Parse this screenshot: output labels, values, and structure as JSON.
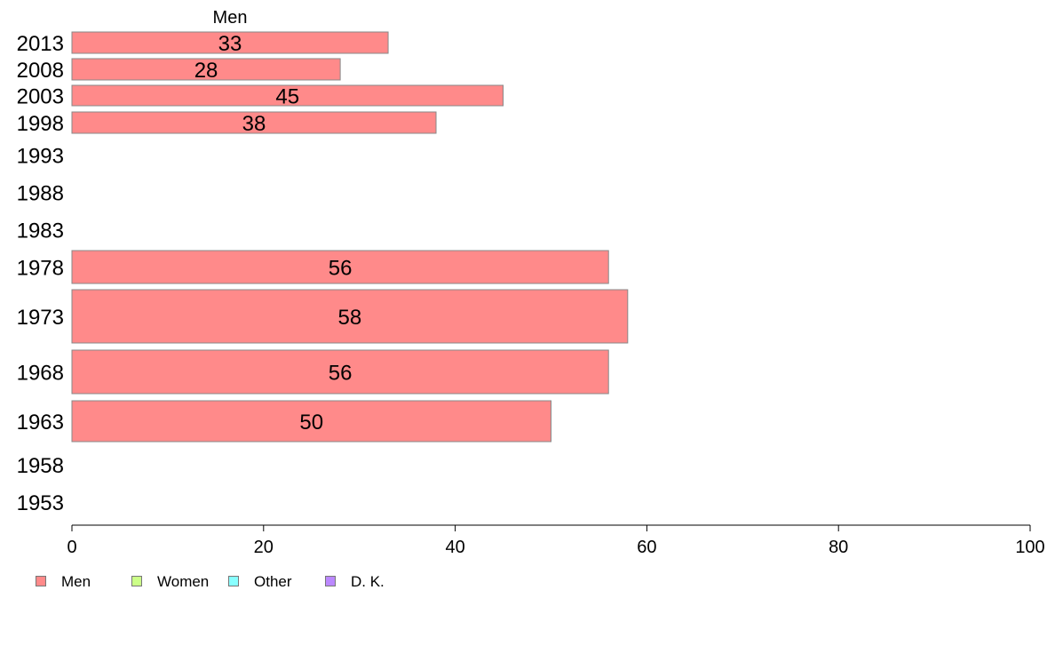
{
  "chart_data": {
    "type": "bar",
    "orientation": "horizontal",
    "title": "Men",
    "categories": [
      "2013",
      "2008",
      "2003",
      "1998",
      "1993",
      "1988",
      "1983",
      "1978",
      "1973",
      "1968",
      "1963",
      "1958",
      "1953"
    ],
    "series": [
      {
        "name": "Men",
        "color": "#ff8a8a",
        "values": [
          33,
          28,
          45,
          38,
          null,
          null,
          null,
          56,
          58,
          56,
          50,
          null,
          null
        ]
      }
    ],
    "data_labels": [
      "33",
      "28",
      "45",
      "38",
      "",
      "",
      "",
      "56",
      "58",
      "56",
      "50",
      "",
      ""
    ],
    "xlim": [
      0,
      100
    ],
    "xticks": [
      0,
      20,
      40,
      60,
      80,
      100
    ],
    "grid": false,
    "legend_position": "bottom-left"
  },
  "legend": {
    "items": [
      {
        "label": "Men",
        "color": "#ff8a8a"
      },
      {
        "label": "Women",
        "color": "#ccff88"
      },
      {
        "label": "Other",
        "color": "#88ffff"
      },
      {
        "label": "D. K.",
        "color": "#bb88ff"
      }
    ]
  }
}
